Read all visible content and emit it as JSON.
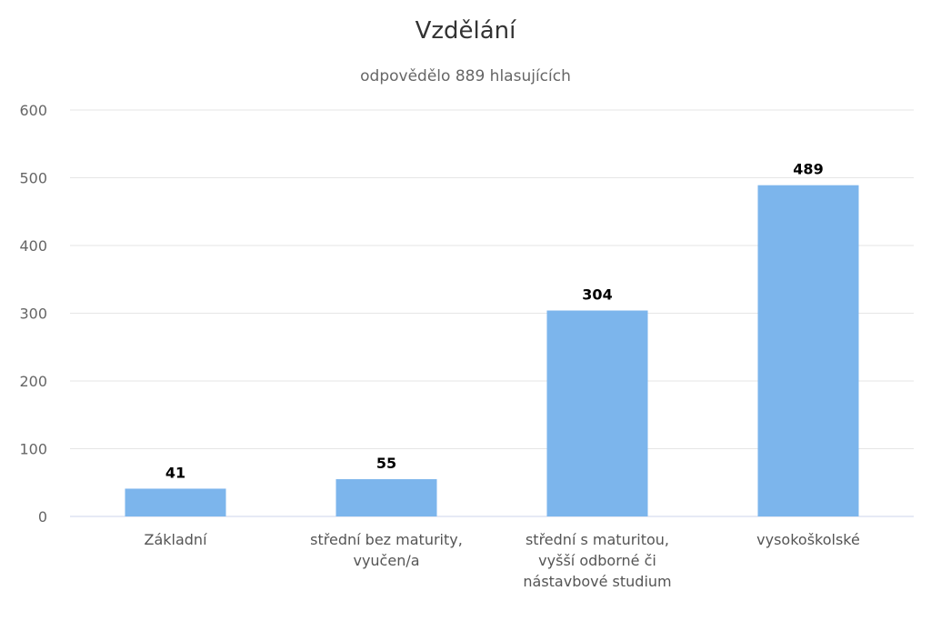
{
  "chart_data": {
    "type": "bar",
    "title": "Vzdělání",
    "subtitle": "odpovědělo 889 hlasujících",
    "categories": [
      [
        "Základní"
      ],
      [
        "střední bez maturity,",
        "vyučen/a"
      ],
      [
        "střední s maturitou,",
        "vyšší odborné či",
        "nástavbové studium"
      ],
      [
        "vysokoškolské"
      ]
    ],
    "values": [
      41,
      55,
      304,
      489
    ],
    "ylim": [
      0,
      600
    ],
    "yticks": [
      0,
      100,
      200,
      300,
      400,
      500,
      600
    ],
    "grid": true,
    "legend": "none",
    "bar_color": "#7cb5ec",
    "data_labels": true
  }
}
